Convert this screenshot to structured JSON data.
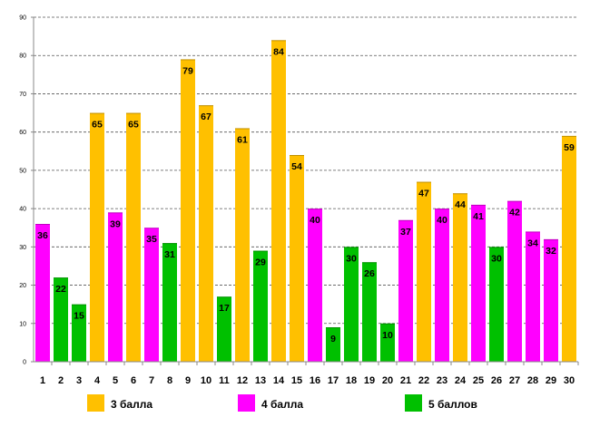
{
  "chart_data": {
    "type": "bar",
    "title": "",
    "xlabel": "",
    "ylabel": "",
    "ylim": [
      0,
      90
    ],
    "yticks": [
      0,
      10,
      20,
      30,
      40,
      50,
      60,
      70,
      80,
      90
    ],
    "grid": true,
    "legend_position": "bottom",
    "categories": [
      "1",
      "2",
      "3",
      "4",
      "5",
      "6",
      "7",
      "8",
      "9",
      "10",
      "11",
      "12",
      "13",
      "14",
      "15",
      "16",
      "17",
      "18",
      "19",
      "20",
      "21",
      "22",
      "23",
      "24",
      "25",
      "26",
      "27",
      "28",
      "29",
      "30"
    ],
    "values": [
      36,
      22,
      15,
      65,
      39,
      65,
      35,
      31,
      79,
      67,
      17,
      61,
      29,
      84,
      54,
      40,
      9,
      30,
      26,
      10,
      37,
      47,
      40,
      44,
      41,
      30,
      42,
      34,
      32,
      59
    ],
    "groups": [
      "4",
      "5",
      "5",
      "3",
      "4",
      "3",
      "4",
      "5",
      "3",
      "3",
      "5",
      "3",
      "5",
      "3",
      "3",
      "4",
      "5",
      "5",
      "5",
      "5",
      "4",
      "3",
      "4",
      "3",
      "4",
      "5",
      "4",
      "4",
      "4",
      "3"
    ],
    "legend": [
      {
        "key": "3",
        "label": "3 балла",
        "color": "#FFC000"
      },
      {
        "key": "4",
        "label": "4 балла",
        "color": "#FF00FF"
      },
      {
        "key": "5",
        "label": "5 баллов",
        "color": "#00C000"
      }
    ]
  }
}
